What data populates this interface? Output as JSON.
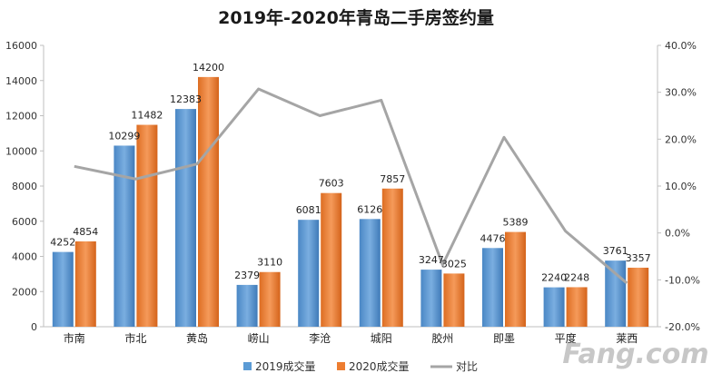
{
  "chart_data": {
    "type": "bar",
    "title": "2019年-2020年青岛二手房签约量",
    "categories": [
      "市南",
      "市北",
      "黄岛",
      "崂山",
      "李沧",
      "城阳",
      "胶州",
      "即墨",
      "平度",
      "莱西"
    ],
    "series": [
      {
        "name": "2019成交量",
        "type": "bar",
        "axis": "left",
        "color": "#5b9bd5",
        "values": [
          4252,
          10299,
          12383,
          2379,
          6081,
          6126,
          3247,
          4476,
          2240,
          3761
        ]
      },
      {
        "name": "2020成交量",
        "type": "bar",
        "axis": "left",
        "color": "#ed7d31",
        "values": [
          4854,
          11482,
          14200,
          3110,
          7603,
          7857,
          3025,
          5389,
          2248,
          3357
        ]
      },
      {
        "name": "对比",
        "type": "line",
        "axis": "right",
        "color": "#a5a5a5",
        "values": [
          14.2,
          11.5,
          14.7,
          30.7,
          25.0,
          28.3,
          -6.8,
          20.4,
          0.4,
          -10.7
        ]
      }
    ],
    "ylim": [
      0,
      16000
    ],
    "y_ticks": [
      "0",
      "2000",
      "4000",
      "6000",
      "8000",
      "10000",
      "12000",
      "14000",
      "16000"
    ],
    "y2lim": [
      -20,
      40
    ],
    "y2_ticks": [
      "-20.0%",
      "-10.0%",
      "0.0%",
      "10.0%",
      "20.0%",
      "30.0%",
      "40.0%"
    ],
    "grid": false,
    "legend": "bottom",
    "watermark": "Fang.com"
  }
}
